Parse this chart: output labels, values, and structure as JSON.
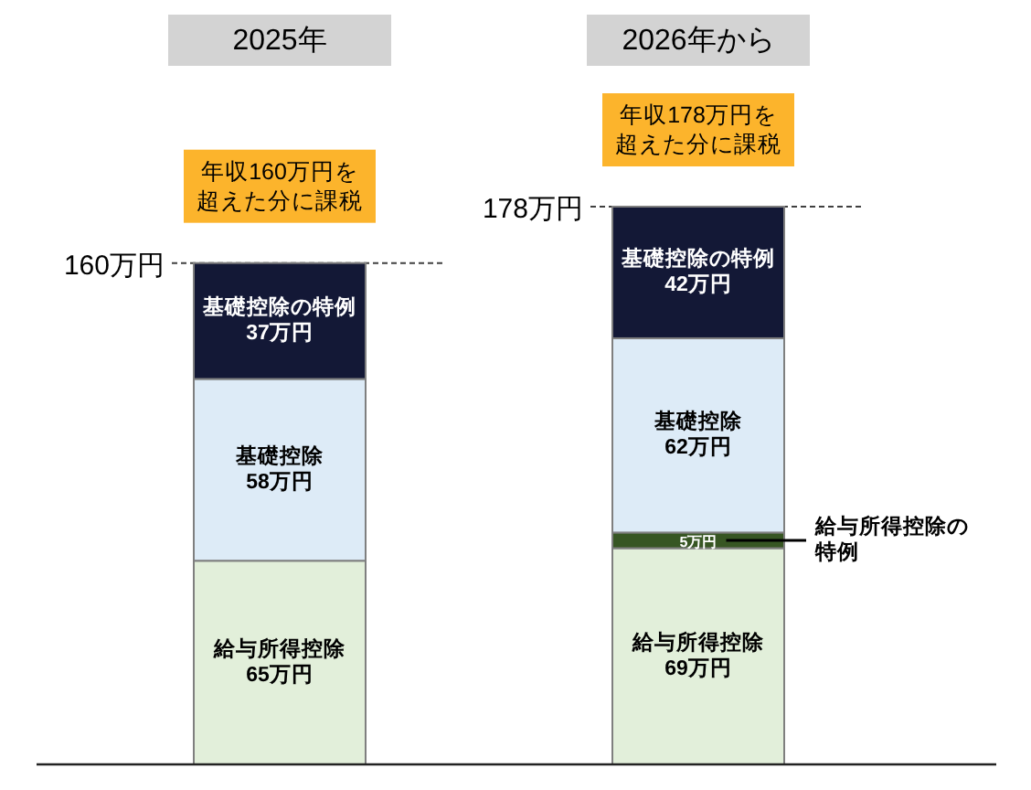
{
  "chart_data": {
    "type": "bar",
    "stacked": true,
    "categories": [
      "2025年",
      "2026年から"
    ],
    "series": [
      {
        "name": "給与所得控除",
        "color": "#e2efda",
        "values": [
          65,
          69
        ],
        "value_labels": [
          "65万円",
          "69万円"
        ]
      },
      {
        "name": "給与所得控除の特例",
        "color": "#375623",
        "values": [
          null,
          5
        ],
        "value_labels": [
          null,
          "5万円"
        ]
      },
      {
        "name": "基礎控除",
        "color": "#ddebf7",
        "values": [
          58,
          62
        ],
        "value_labels": [
          "58万円",
          "62万円"
        ]
      },
      {
        "name": "基礎控除の特例",
        "color": "#131836",
        "values": [
          37,
          42
        ],
        "value_labels": [
          "37万円",
          "42万円"
        ]
      }
    ],
    "ref_lines": [
      {
        "axis": "y",
        "value": 160,
        "label": "160万円",
        "color": "#404040",
        "line_style": "dashed"
      },
      {
        "axis": "y",
        "value": 178,
        "label": "178万円",
        "color": "#404040",
        "line_style": "dashed"
      }
    ],
    "annotations": [
      "年収160万円を超えた分に課税",
      "年収178万円を超えた分に課税"
    ]
  }
}
